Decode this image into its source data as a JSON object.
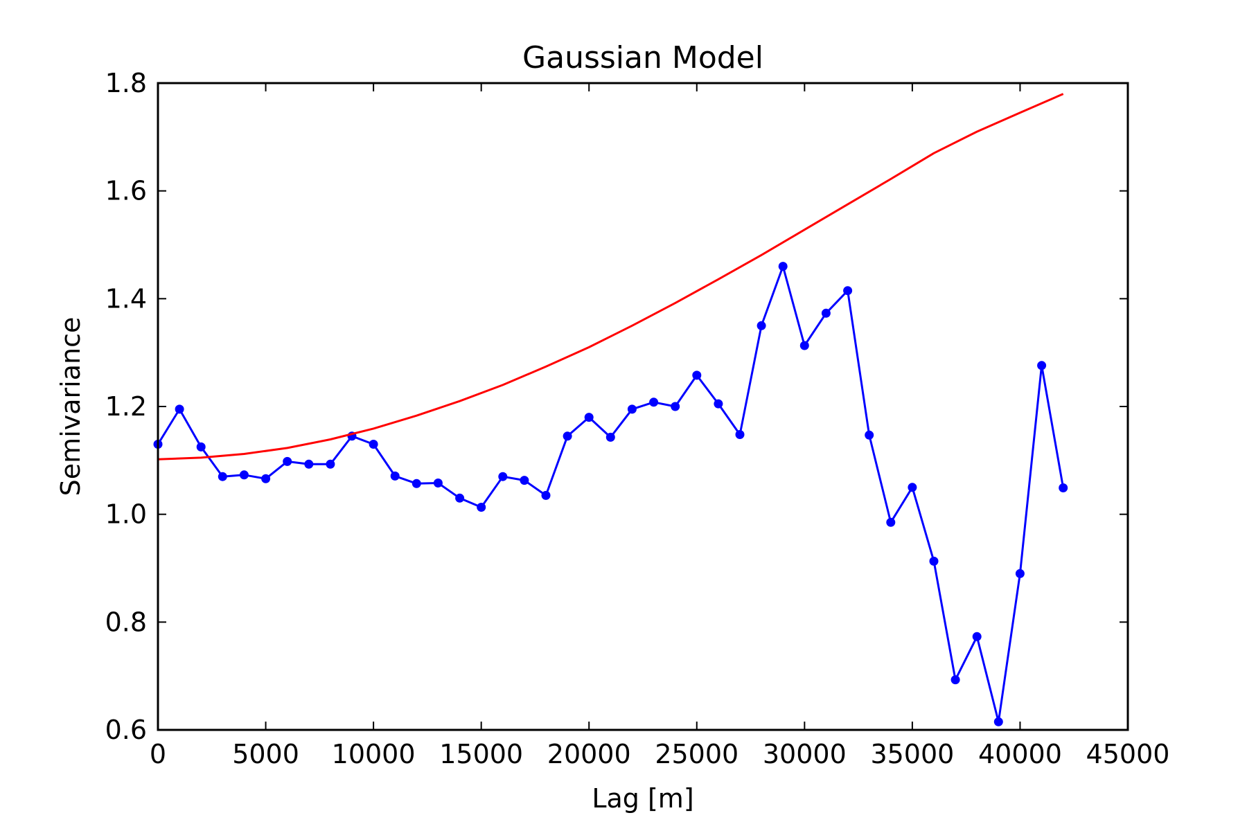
{
  "chart_data": {
    "type": "line",
    "title": "Gaussian Model",
    "xlabel": "Lag [m]",
    "ylabel": "Semivariance",
    "xlim": [
      0,
      45000
    ],
    "ylim": [
      0.6,
      1.8
    ],
    "xticks": [
      0,
      5000,
      10000,
      15000,
      20000,
      25000,
      30000,
      35000,
      40000,
      45000
    ],
    "yticks": [
      0.6,
      0.8,
      1.0,
      1.2,
      1.4,
      1.6,
      1.8
    ],
    "xtick_labels": [
      "0",
      "5000",
      "10000",
      "15000",
      "20000",
      "25000",
      "30000",
      "35000",
      "40000",
      "45000"
    ],
    "ytick_labels": [
      "0.6",
      "0.8",
      "1.0",
      "1.2",
      "1.4",
      "1.6",
      "1.8"
    ],
    "grid": false,
    "legend": "none",
    "series": [
      {
        "color": "#0000ff",
        "marker": "circle",
        "x": [
          0,
          1000,
          2000,
          3000,
          4000,
          5000,
          6000,
          7000,
          8000,
          9000,
          10000,
          11000,
          12000,
          13000,
          14000,
          15000,
          16000,
          17000,
          18000,
          19000,
          20000,
          21000,
          22000,
          23000,
          24000,
          25000,
          26000,
          27000,
          28000,
          29000,
          30000,
          31000,
          32000,
          33000,
          34000,
          35000,
          36000,
          37000,
          38000,
          39000,
          40000,
          41000,
          42000
        ],
        "y": [
          1.13,
          1.195,
          1.125,
          1.07,
          1.073,
          1.066,
          1.098,
          1.093,
          1.093,
          1.145,
          1.13,
          1.071,
          1.057,
          1.058,
          1.03,
          1.013,
          1.07,
          1.063,
          1.035,
          1.145,
          1.18,
          1.143,
          1.195,
          1.208,
          1.2,
          1.258,
          1.205,
          1.148,
          1.35,
          1.46,
          1.313,
          1.373,
          1.415,
          1.147,
          0.985,
          1.05,
          0.913,
          0.693,
          0.773,
          0.615,
          0.89,
          1.276,
          1.049
        ]
      },
      {
        "color": "#ff0000",
        "marker": "none",
        "x": [
          0,
          2000,
          4000,
          6000,
          8000,
          10000,
          12000,
          14000,
          16000,
          18000,
          20000,
          22000,
          24000,
          26000,
          28000,
          30000,
          32000,
          34000,
          36000,
          38000,
          40000,
          42000
        ],
        "y": [
          1.102,
          1.105,
          1.112,
          1.123,
          1.139,
          1.159,
          1.183,
          1.21,
          1.24,
          1.274,
          1.31,
          1.35,
          1.392,
          1.436,
          1.481,
          1.528,
          1.575,
          1.622,
          1.67,
          1.71,
          1.745,
          1.78
        ]
      }
    ]
  }
}
